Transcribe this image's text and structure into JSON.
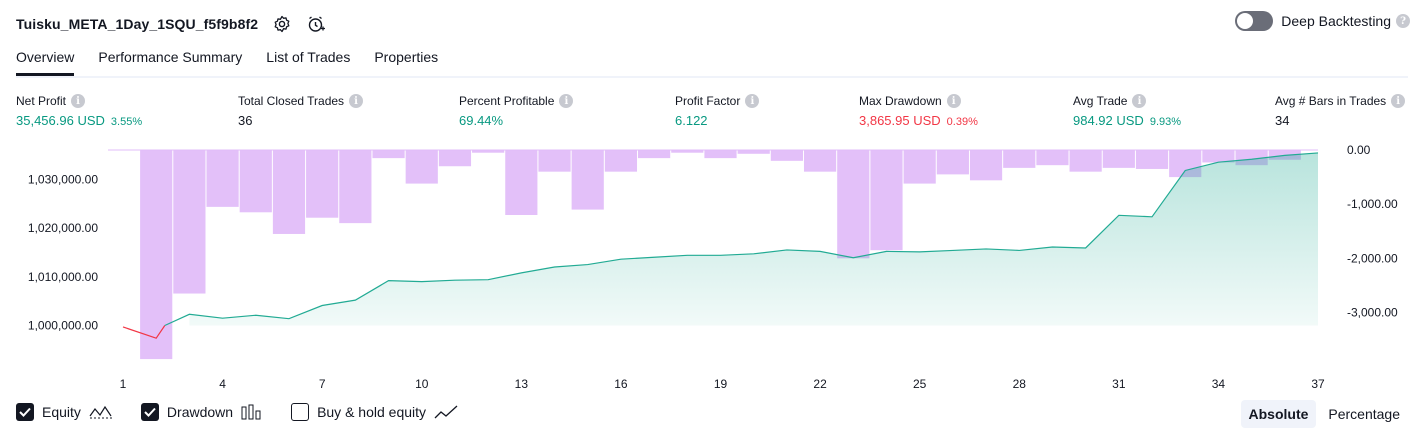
{
  "header": {
    "title": "Tuisku_META_1Day_1SQU_f5f9b8f2",
    "deep_backtesting_label": "Deep Backtesting",
    "deep_backtesting_enabled": false
  },
  "tabs": [
    {
      "label": "Overview",
      "active": true
    },
    {
      "label": "Performance Summary",
      "active": false
    },
    {
      "label": "List of Trades",
      "active": false
    },
    {
      "label": "Properties",
      "active": false
    }
  ],
  "metrics": [
    {
      "label": "Net Profit",
      "value": "35,456.96 USD",
      "pct": "3.55%",
      "tone": "green"
    },
    {
      "label": "Total Closed Trades",
      "value": "36",
      "pct": "",
      "tone": "neutral"
    },
    {
      "label": "Percent Profitable",
      "value": "69.44%",
      "pct": "",
      "tone": "green"
    },
    {
      "label": "Profit Factor",
      "value": "6.122",
      "pct": "",
      "tone": "green"
    },
    {
      "label": "Max Drawdown",
      "value": "3,865.95 USD",
      "pct": "0.39%",
      "tone": "red"
    },
    {
      "label": "Avg Trade",
      "value": "984.92 USD",
      "pct": "9.93%",
      "tone": "green"
    },
    {
      "label": "Avg # Bars in Trades",
      "value": "34",
      "pct": "",
      "tone": "neutral"
    }
  ],
  "colors": {
    "equity_line": "#22ab94",
    "equity_fill": "#22ab94",
    "equity_below_line": "#f23645",
    "drawdown_bar": "#e1bdf9",
    "positive": "#089981",
    "negative": "#f23645"
  },
  "chart_data": {
    "type": "line",
    "x": [
      1,
      2,
      3,
      4,
      5,
      6,
      7,
      8,
      9,
      10,
      11,
      12,
      13,
      14,
      15,
      16,
      17,
      18,
      19,
      20,
      21,
      22,
      23,
      24,
      25,
      26,
      27,
      28,
      29,
      30,
      31,
      32,
      33,
      34,
      35,
      36,
      37
    ],
    "xticks": [
      "1",
      "4",
      "7",
      "10",
      "13",
      "16",
      "19",
      "22",
      "25",
      "28",
      "31",
      "34",
      "37"
    ],
    "left_axis": {
      "ticks": [
        "1,000,000.00",
        "1,010,000.00",
        "1,020,000.00",
        "1,030,000.00"
      ],
      "range": [
        996000,
        1036000
      ]
    },
    "right_axis": {
      "ticks": [
        "0.00",
        "-1,000.00",
        "-2,000.00",
        "-3,000.00"
      ],
      "range": [
        -3600,
        0
      ]
    },
    "series": [
      {
        "name": "Equity",
        "axis": "left",
        "values": [
          999700,
          997400,
          1002300,
          1001500,
          1002100,
          1001400,
          1004100,
          1005200,
          1009200,
          1009000,
          1009300,
          1009400,
          1010800,
          1012000,
          1012500,
          1013600,
          1014000,
          1014400,
          1014400,
          1014700,
          1015500,
          1015200,
          1013900,
          1015200,
          1015100,
          1015400,
          1015700,
          1015400,
          1016100,
          1015900,
          1022600,
          1022300,
          1031800,
          1033500,
          1034100,
          1034900,
          1035400
        ]
      },
      {
        "name": "Drawdown",
        "axis": "right",
        "values": [
          0,
          -3860,
          -2650,
          -1050,
          -1150,
          -1550,
          -1250,
          -1350,
          -150,
          -620,
          -300,
          -50,
          -1200,
          -400,
          -1100,
          -400,
          -150,
          -50,
          -150,
          -70,
          -200,
          -400,
          -2000,
          -1850,
          -620,
          -450,
          -560,
          -330,
          -280,
          -400,
          -330,
          -350,
          -500,
          -230,
          -280,
          -180,
          0
        ]
      }
    ]
  },
  "legend": [
    {
      "label": "Equity",
      "checked": true,
      "icon": "equity-line-icon"
    },
    {
      "label": "Drawdown",
      "checked": true,
      "icon": "drawdown-bars-icon"
    },
    {
      "label": "Buy & hold equity",
      "checked": false,
      "icon": "buy-hold-line-icon"
    }
  ],
  "mode": {
    "options": [
      "Absolute",
      "Percentage"
    ],
    "selected": "Absolute"
  }
}
